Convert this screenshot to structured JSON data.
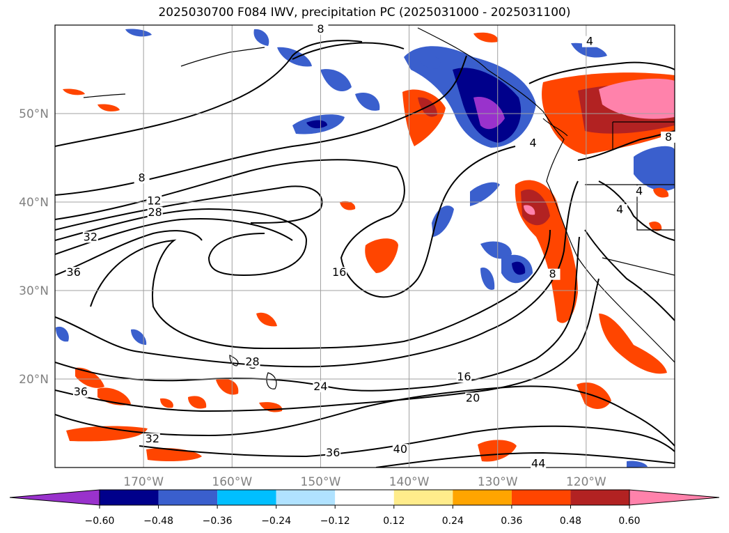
{
  "title": "2025030700 F084 IWV, precipitation PC (2025031000 - 2025031100)",
  "map": {
    "lat_range": [
      10,
      60
    ],
    "lon_range": [
      -180,
      -110
    ],
    "lat_ticks": [
      {
        "value": 20,
        "label": "20°N"
      },
      {
        "value": 30,
        "label": "30°N"
      },
      {
        "value": 40,
        "label": "40°N"
      },
      {
        "value": 50,
        "label": "50°N"
      }
    ],
    "lon_ticks": [
      {
        "value": -170,
        "label": "170°W"
      },
      {
        "value": -160,
        "label": "160°W"
      },
      {
        "value": -150,
        "label": "150°W"
      },
      {
        "value": -140,
        "label": "140°W"
      },
      {
        "value": -130,
        "label": "130°W"
      },
      {
        "value": -120,
        "label": "120°W"
      }
    ],
    "grid": true,
    "contour_labels": [
      {
        "text": "8",
        "lon": -170.2,
        "lat": 42.5
      },
      {
        "text": "12",
        "lon": -168.8,
        "lat": 39.9
      },
      {
        "text": "28",
        "lon": -168.7,
        "lat": 38.6
      },
      {
        "text": "32",
        "lon": -176.0,
        "lat": 35.8
      },
      {
        "text": "36",
        "lon": -177.9,
        "lat": 31.8
      },
      {
        "text": "16",
        "lon": -147.9,
        "lat": 31.8
      },
      {
        "text": "36",
        "lon": -177.1,
        "lat": 18.3
      },
      {
        "text": "32",
        "lon": -169.0,
        "lat": 13.0
      },
      {
        "text": "24",
        "lon": -150.0,
        "lat": 18.9
      },
      {
        "text": "28",
        "lon": -157.7,
        "lat": 21.7
      },
      {
        "text": "36",
        "lon": -148.6,
        "lat": 11.4
      },
      {
        "text": "40",
        "lon": -141.0,
        "lat": 11.8
      },
      {
        "text": "44",
        "lon": -125.4,
        "lat": 10.2
      },
      {
        "text": "16",
        "lon": -133.8,
        "lat": 20.0
      },
      {
        "text": "20",
        "lon": -132.8,
        "lat": 17.6
      },
      {
        "text": "8",
        "lon": -123.8,
        "lat": 31.6
      },
      {
        "text": "4",
        "lon": -126.0,
        "lat": 46.4
      },
      {
        "text": "4",
        "lon": -119.6,
        "lat": 57.9
      },
      {
        "text": "8",
        "lon": -110.7,
        "lat": 47.1
      },
      {
        "text": "4",
        "lon": -116.2,
        "lat": 38.9
      },
      {
        "text": "4",
        "lon": -114.0,
        "lat": 41.0
      },
      {
        "text": "8",
        "lon": -150.0,
        "lat": 59.3
      }
    ]
  },
  "colorbar": {
    "ticks": [
      "−0.60",
      "−0.48",
      "−0.36",
      "−0.24",
      "−0.12",
      "0.12",
      "0.24",
      "0.36",
      "0.48",
      "0.60"
    ],
    "colors": [
      "#9932cc",
      "#00008b",
      "#3a5fcd",
      "#00bfff",
      "#b0e2ff",
      "#ffffff",
      "#ffec8b",
      "#ffa500",
      "#ff4500",
      "#b22222",
      "#ff82ab"
    ],
    "extend": "both"
  }
}
